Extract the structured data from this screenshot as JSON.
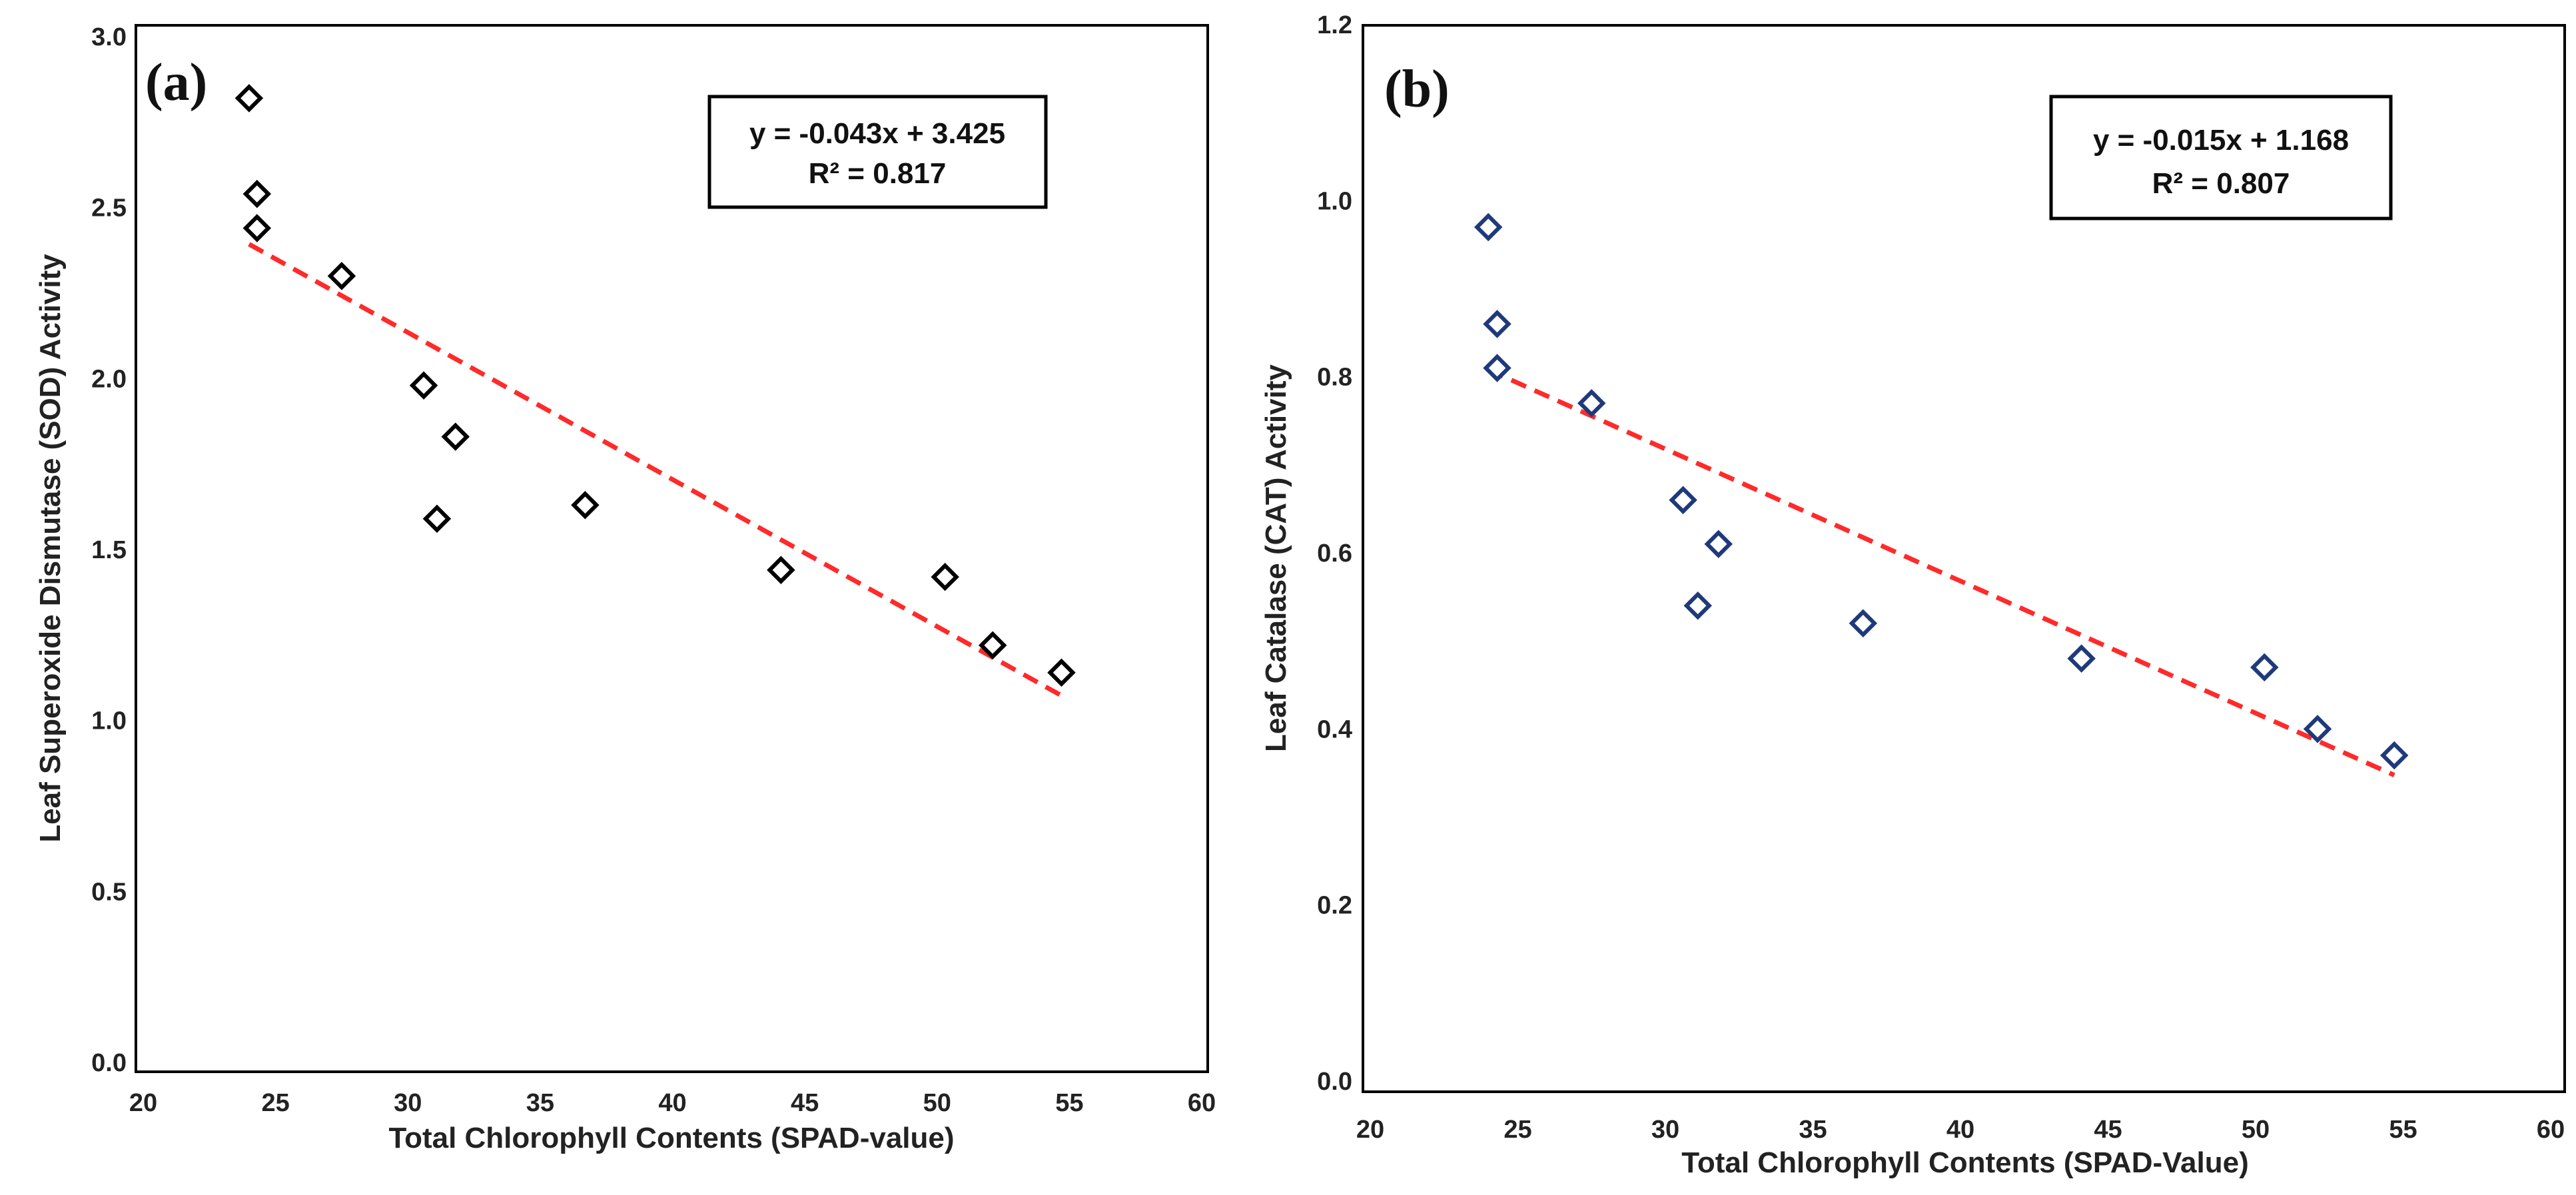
{
  "chart_data": [
    {
      "type": "scatter",
      "panel_label": "(a)",
      "xlabel": "Total Chlorophyll Contents (SPAD-value)",
      "ylabel": "Leaf Superoxide Dismutase (SOD) Activity",
      "xlim": [
        20,
        60
      ],
      "ylim": [
        0.0,
        3.0
      ],
      "xticks": [
        20,
        25,
        30,
        35,
        40,
        45,
        50,
        55,
        60
      ],
      "yticks": [
        "0.0",
        "0.5",
        "1.0",
        "1.5",
        "2.0",
        "2.5",
        "3.0"
      ],
      "series": [
        {
          "name": "SOD",
          "marker": "diamond",
          "color": "#000000",
          "x": [
            24.0,
            24.3,
            24.3,
            27.5,
            30.6,
            31.1,
            31.8,
            36.7,
            44.1,
            50.3,
            52.1,
            54.7
          ],
          "y": [
            2.82,
            2.54,
            2.44,
            2.3,
            1.98,
            1.59,
            1.83,
            1.63,
            1.44,
            1.42,
            1.22,
            1.14
          ]
        }
      ],
      "trendline": {
        "slope": -0.043,
        "intercept": 3.425,
        "x_range": [
          24.0,
          54.7
        ],
        "color": "#ff2a2a",
        "style": "dashed"
      },
      "annotation": {
        "equation": "y = -0.043x + 3.425",
        "r2": "R² = 0.817"
      }
    },
    {
      "type": "scatter",
      "panel_label": "(b)",
      "xlabel": "Total Chlorophyll Contents (SPAD-Value)",
      "ylabel": "Leaf Catalase (CAT) Activity",
      "xlim": [
        20,
        60
      ],
      "ylim": [
        0.0,
        1.2
      ],
      "xticks": [
        20,
        25,
        30,
        35,
        40,
        45,
        50,
        55,
        60
      ],
      "yticks": [
        "0.0",
        "0.2",
        "0.4",
        "0.6",
        "0.8",
        "1.0",
        "1.2"
      ],
      "series": [
        {
          "name": "CAT",
          "marker": "diamond",
          "color": "#1f3a7a",
          "x": [
            24.0,
            24.3,
            24.3,
            27.5,
            30.6,
            31.1,
            31.8,
            36.7,
            44.1,
            50.3,
            52.1,
            54.7
          ],
          "y": [
            0.97,
            0.86,
            0.81,
            0.77,
            0.66,
            0.54,
            0.61,
            0.52,
            0.48,
            0.47,
            0.4,
            0.37
          ]
        }
      ],
      "trendline": {
        "slope": -0.015,
        "intercept": 1.168,
        "x_range": [
          24.0,
          54.7
        ],
        "color": "#ff2a2a",
        "style": "dashed"
      },
      "annotation": {
        "equation": "y = -0.015x + 1.168",
        "r2": "R² = 0.807"
      }
    }
  ]
}
